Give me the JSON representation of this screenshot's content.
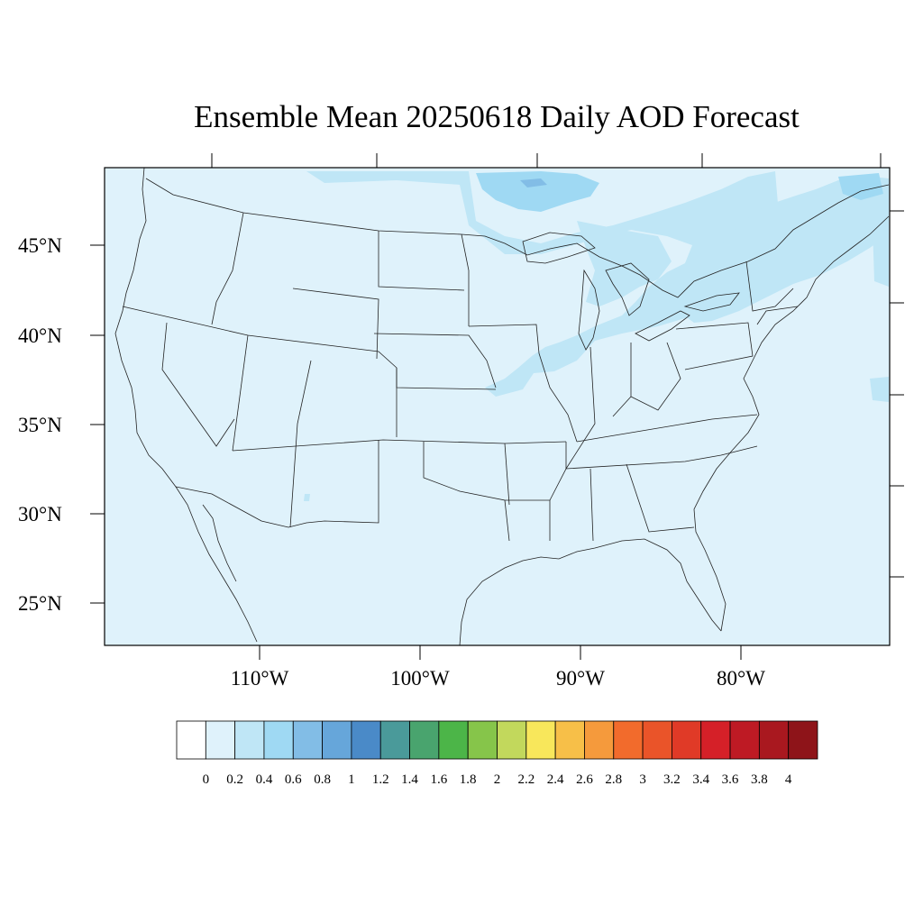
{
  "title": "Ensemble Mean 20250618 Daily AOD Forecast",
  "chart_data": {
    "type": "heatmap",
    "title": "Ensemble Mean 20250618 Daily AOD Forecast",
    "region": "Contiguous United States",
    "lon_range": [
      -119,
      -70
    ],
    "lat_range": [
      22.7,
      49.5
    ],
    "lat_ticks": [
      "25°N",
      "30°N",
      "35°N",
      "40°N",
      "45°N"
    ],
    "lon_ticks": [
      "110°W",
      "100°W",
      "90°W",
      "80°W"
    ],
    "background_aod_range": [
      0.0,
      0.2
    ],
    "elevated_regions": [
      {
        "area": "Northern Great Lakes / southern Ontario",
        "aod_range": [
          0.2,
          0.6
        ],
        "peak": 0.6
      },
      {
        "area": "Northeast / New England",
        "aod_range": [
          0.2,
          0.4
        ]
      },
      {
        "area": "Illinois / Missouri / Indiana band",
        "aod_range": [
          0.2,
          0.4
        ]
      },
      {
        "area": "Western Atlantic offshore",
        "aod_range": [
          0.2,
          0.4
        ]
      }
    ],
    "colorbar": {
      "labels": [
        "0",
        "0.2",
        "0.4",
        "0.6",
        "0.8",
        "1",
        "1.2",
        "1.4",
        "1.6",
        "1.8",
        "2",
        "2.2",
        "2.4",
        "2.6",
        "2.8",
        "3",
        "3.2",
        "3.4",
        "3.6",
        "3.8",
        "4"
      ],
      "colors": [
        "#ffffff",
        "#dff2fb",
        "#bfe6f6",
        "#9fd9f3",
        "#82bde6",
        "#66a6da",
        "#4a8ac8",
        "#4a9a9a",
        "#49a46e",
        "#4cb548",
        "#86c54a",
        "#c2d85c",
        "#f8e75b",
        "#f7bf48",
        "#f59a3c",
        "#f26b2c",
        "#ea5429",
        "#e03a27",
        "#d52028",
        "#be1a24",
        "#a9181f",
        "#8e1419"
      ]
    }
  }
}
